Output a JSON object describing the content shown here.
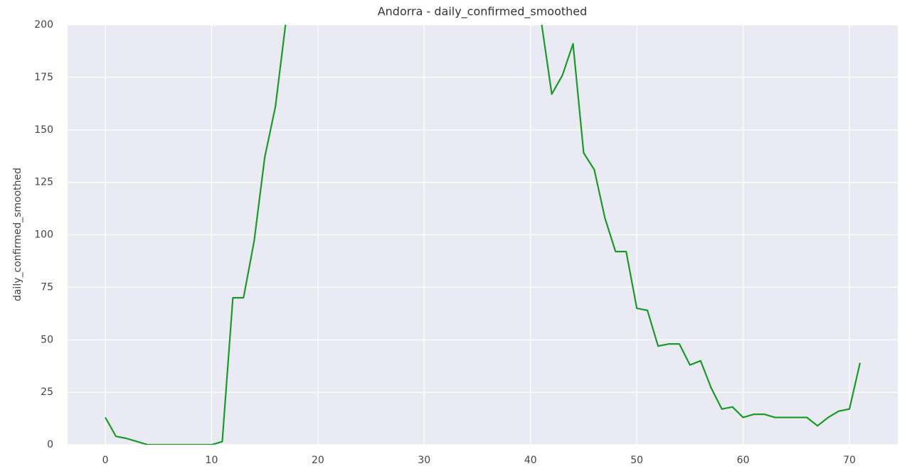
{
  "chart_data": {
    "type": "line",
    "title": "Andorra - daily_confirmed_smoothed",
    "ylabel": "daily_confirmed_smoothed",
    "x": [
      0,
      1,
      2,
      3,
      4,
      5,
      6,
      7,
      8,
      9,
      10,
      11,
      12,
      13,
      14,
      15,
      16,
      17,
      18,
      19,
      20,
      21,
      22,
      23,
      24,
      25,
      26,
      27,
      28,
      29,
      30,
      31,
      32,
      33,
      34,
      35,
      36,
      37,
      38,
      39,
      40,
      41,
      42,
      43,
      44,
      45,
      46,
      47,
      48,
      49,
      50,
      51,
      52,
      53,
      54,
      55,
      56,
      57,
      58,
      59,
      60,
      61,
      62,
      63,
      64,
      65,
      66,
      67,
      68,
      69,
      70,
      71
    ],
    "series": [
      {
        "name": "daily_confirmed_smoothed",
        "color": "#1a9a2a",
        "values": [
          13,
          4,
          3,
          1.5,
          0,
          0,
          0,
          0,
          0,
          0,
          0,
          1.5,
          70,
          70,
          97,
          137,
          161,
          202,
          null,
          null,
          null,
          null,
          null,
          null,
          null,
          null,
          null,
          null,
          null,
          null,
          null,
          null,
          null,
          null,
          null,
          null,
          null,
          null,
          null,
          null,
          null,
          202,
          167,
          176,
          191,
          139,
          131,
          108,
          92,
          92,
          65,
          64,
          47,
          48,
          48,
          38,
          40,
          27,
          17,
          18,
          13,
          14.5,
          14.5,
          13,
          13,
          13,
          13,
          9,
          13,
          16,
          17,
          39
        ]
      }
    ],
    "xlim": [
      -3.55,
      74.55
    ],
    "xticks": [
      0,
      10,
      20,
      30,
      40,
      50,
      60,
      70
    ],
    "ylim": [
      0,
      200
    ],
    "yticks": [
      0,
      25,
      50,
      75,
      100,
      125,
      150,
      175,
      200
    ],
    "grid": true
  }
}
